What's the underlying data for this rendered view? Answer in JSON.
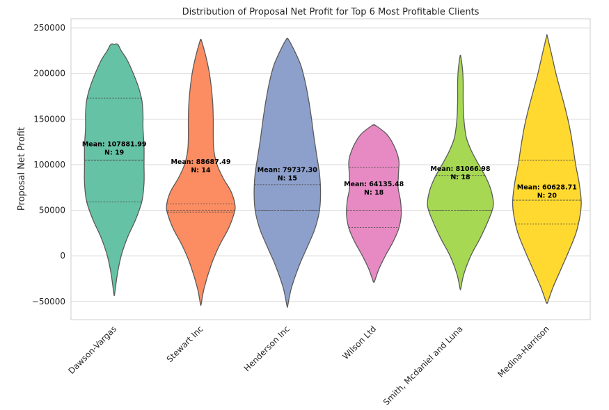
{
  "chart_data": {
    "type": "violin",
    "title": "Distribution of Proposal Net Profit for Top 6 Most Profitable Clients",
    "xlabel": "",
    "ylabel": "Proposal Net Profit",
    "ylim": [
      -70000,
      260000
    ],
    "yticks": [
      -50000,
      0,
      50000,
      100000,
      150000,
      200000,
      250000
    ],
    "ytick_labels": [
      "−50000",
      "0",
      "50000",
      "100000",
      "150000",
      "200000",
      "250000"
    ],
    "grid": true,
    "categories": [
      "Dawson-Vargas",
      "Stewart Inc",
      "Henderson Inc",
      "Wilson Ltd",
      "Smith, Mcdaniel and Luna",
      "Medina-Harrison"
    ],
    "colors": [
      "#66c2a5",
      "#fc8d62",
      "#8da0cb",
      "#e78ac3",
      "#a6d854",
      "#ffd92f"
    ],
    "series": [
      {
        "category": "Dawson-Vargas",
        "mean_label": "Mean: 107881.99",
        "n_label": "N: 19",
        "min": -42000,
        "max": 232000,
        "q1": 59000,
        "median": 105000,
        "q3": 173000,
        "density": [
          [
            -42000,
            0.01
          ],
          [
            -20000,
            0.09
          ],
          [
            0,
            0.2
          ],
          [
            20000,
            0.38
          ],
          [
            40000,
            0.62
          ],
          [
            60000,
            0.8
          ],
          [
            80000,
            0.86
          ],
          [
            100000,
            0.86
          ],
          [
            120000,
            0.86
          ],
          [
            140000,
            0.83
          ],
          [
            155000,
            0.83
          ],
          [
            170000,
            0.8
          ],
          [
            185000,
            0.7
          ],
          [
            200000,
            0.55
          ],
          [
            215000,
            0.37
          ],
          [
            225000,
            0.2
          ],
          [
            232000,
            0.1
          ]
        ]
      },
      {
        "category": "Stewart Inc",
        "mean_label": "Mean: 88687.49",
        "n_label": "N: 14",
        "min": -53000,
        "max": 236000,
        "q1": 48000,
        "median": 50000,
        "q3": 57000,
        "density": [
          [
            -53000,
            0.01
          ],
          [
            -35000,
            0.1
          ],
          [
            -10000,
            0.3
          ],
          [
            10000,
            0.52
          ],
          [
            30000,
            0.8
          ],
          [
            45000,
            0.95
          ],
          [
            55000,
            0.99
          ],
          [
            70000,
            0.88
          ],
          [
            85000,
            0.65
          ],
          [
            100000,
            0.47
          ],
          [
            115000,
            0.38
          ],
          [
            130000,
            0.36
          ],
          [
            150000,
            0.36
          ],
          [
            170000,
            0.34
          ],
          [
            195000,
            0.27
          ],
          [
            215000,
            0.17
          ],
          [
            236000,
            0.02
          ]
        ]
      },
      {
        "category": "Henderson Inc",
        "mean_label": "Mean: 79737.30",
        "n_label": "N: 15",
        "min": -55000,
        "max": 238000,
        "q1": 50000,
        "median": 50000,
        "q3": 78000,
        "density": [
          [
            -55000,
            0.01
          ],
          [
            -35000,
            0.12
          ],
          [
            -10000,
            0.35
          ],
          [
            10000,
            0.58
          ],
          [
            30000,
            0.8
          ],
          [
            50000,
            0.93
          ],
          [
            70000,
            0.96
          ],
          [
            90000,
            0.93
          ],
          [
            110000,
            0.85
          ],
          [
            130000,
            0.77
          ],
          [
            150000,
            0.7
          ],
          [
            170000,
            0.62
          ],
          [
            190000,
            0.52
          ],
          [
            210000,
            0.38
          ],
          [
            230000,
            0.14
          ],
          [
            238000,
            0.02
          ]
        ]
      },
      {
        "category": "Wilson Ltd",
        "mean_label": "Mean: 64135.48",
        "n_label": "N: 18",
        "min": -28000,
        "max": 143000,
        "q1": 31000,
        "median": 50000,
        "q3": 97000,
        "density": [
          [
            -28000,
            0.02
          ],
          [
            -15000,
            0.14
          ],
          [
            0,
            0.33
          ],
          [
            15000,
            0.55
          ],
          [
            30000,
            0.72
          ],
          [
            45000,
            0.79
          ],
          [
            60000,
            0.77
          ],
          [
            75000,
            0.7
          ],
          [
            90000,
            0.71
          ],
          [
            105000,
            0.72
          ],
          [
            120000,
            0.59
          ],
          [
            133000,
            0.38
          ],
          [
            143000,
            0.05
          ]
        ]
      },
      {
        "category": "Smith, Mcdaniel and Luna",
        "mean_label": "Mean: 81066.98",
        "n_label": "N: 18",
        "min": -36000,
        "max": 219000,
        "q1": 50000,
        "median": 50000,
        "q3": 88000,
        "density": [
          [
            -36000,
            0.01
          ],
          [
            -20000,
            0.1
          ],
          [
            0,
            0.3
          ],
          [
            20000,
            0.58
          ],
          [
            40000,
            0.82
          ],
          [
            55000,
            0.95
          ],
          [
            70000,
            0.9
          ],
          [
            85000,
            0.75
          ],
          [
            100000,
            0.53
          ],
          [
            115000,
            0.32
          ],
          [
            130000,
            0.17
          ],
          [
            150000,
            0.1
          ],
          [
            170000,
            0.08
          ],
          [
            190000,
            0.08
          ],
          [
            205000,
            0.06
          ],
          [
            219000,
            0.01
          ]
        ]
      },
      {
        "category": "Medina-Harrison",
        "mean_label": "Mean: 60628.71",
        "n_label": "N: 20",
        "min": -51000,
        "max": 241000,
        "q1": 35000,
        "median": 61000,
        "q3": 105000,
        "density": [
          [
            -51000,
            0.02
          ],
          [
            -35000,
            0.17
          ],
          [
            -15000,
            0.4
          ],
          [
            5000,
            0.63
          ],
          [
            25000,
            0.84
          ],
          [
            45000,
            0.96
          ],
          [
            60000,
            0.99
          ],
          [
            80000,
            0.93
          ],
          [
            100000,
            0.83
          ],
          [
            120000,
            0.75
          ],
          [
            140000,
            0.66
          ],
          [
            160000,
            0.54
          ],
          [
            180000,
            0.4
          ],
          [
            200000,
            0.26
          ],
          [
            220000,
            0.14
          ],
          [
            241000,
            0.01
          ]
        ]
      }
    ]
  }
}
